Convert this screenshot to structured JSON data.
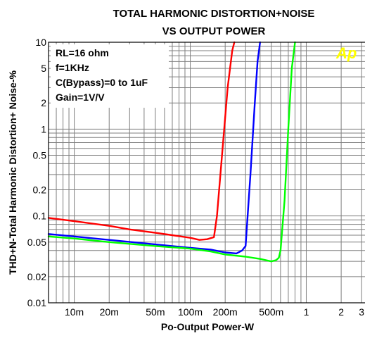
{
  "chart_data": {
    "type": "line",
    "title": "TOTAL HARMONIC DISTORTION+NOISE",
    "subtitle": "VS OUTPUT POWER",
    "xlabel": "Po-Output Power-W",
    "ylabel": "THD+N-Total Harmonic Distortion+ Noise-%",
    "x_scale": "log",
    "y_scale": "log",
    "xlim": [
      0.006,
      3.3
    ],
    "ylim": [
      0.01,
      10
    ],
    "grid": true,
    "x_ticks": [
      {
        "value": 0.01,
        "label": "10m"
      },
      {
        "value": 0.02,
        "label": "20m"
      },
      {
        "value": 0.05,
        "label": "50m"
      },
      {
        "value": 0.1,
        "label": "100m"
      },
      {
        "value": 0.2,
        "label": "200m"
      },
      {
        "value": 0.5,
        "label": "500m"
      },
      {
        "value": 1,
        "label": "1"
      },
      {
        "value": 2,
        "label": "2"
      },
      {
        "value": 3,
        "label": "3"
      }
    ],
    "y_ticks": [
      {
        "value": 0.01,
        "label": "0.01"
      },
      {
        "value": 0.02,
        "label": "0.02"
      },
      {
        "value": 0.05,
        "label": "0.05"
      },
      {
        "value": 0.1,
        "label": "0.1"
      },
      {
        "value": 0.2,
        "label": "0.2"
      },
      {
        "value": 0.5,
        "label": "0.5"
      },
      {
        "value": 1,
        "label": "1"
      },
      {
        "value": 2,
        "label": "2"
      },
      {
        "value": 5,
        "label": "5"
      },
      {
        "value": 10,
        "label": "10"
      }
    ],
    "annotations": [
      "RL=16 ohm",
      "f=1KHz",
      "C(Bypass)=0 to 1uF",
      "Gain=1V/V"
    ],
    "logo": "Ap",
    "series": [
      {
        "color": "#ff0000",
        "x": [
          0.006,
          0.01,
          0.02,
          0.03,
          0.05,
          0.07,
          0.1,
          0.12,
          0.14,
          0.16,
          0.17,
          0.19,
          0.21,
          0.23,
          0.24
        ],
        "y": [
          0.095,
          0.087,
          0.077,
          0.07,
          0.064,
          0.06,
          0.056,
          0.053,
          0.054,
          0.057,
          0.1,
          0.6,
          3,
          8,
          10
        ]
      },
      {
        "color": "#0000ff",
        "x": [
          0.006,
          0.01,
          0.02,
          0.05,
          0.1,
          0.15,
          0.2,
          0.25,
          0.28,
          0.3,
          0.33,
          0.36,
          0.38,
          0.4
        ],
        "y": [
          0.062,
          0.058,
          0.053,
          0.047,
          0.043,
          0.041,
          0.038,
          0.037,
          0.04,
          0.045,
          0.3,
          2,
          6,
          10
        ]
      },
      {
        "color": "#00ff00",
        "x": [
          0.006,
          0.01,
          0.02,
          0.05,
          0.1,
          0.15,
          0.2,
          0.3,
          0.4,
          0.5,
          0.55,
          0.58,
          0.6,
          0.65,
          0.7,
          0.75,
          0.8
        ],
        "y": [
          0.058,
          0.055,
          0.05,
          0.045,
          0.042,
          0.039,
          0.036,
          0.034,
          0.032,
          0.03,
          0.031,
          0.033,
          0.04,
          0.15,
          1,
          5,
          10
        ]
      }
    ]
  }
}
